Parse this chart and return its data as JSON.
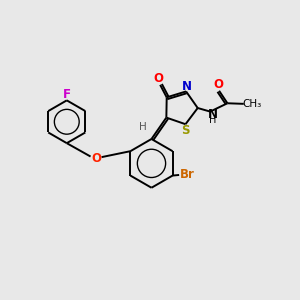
{
  "background_color": "#e8e8e8",
  "figsize": [
    3.0,
    3.0
  ],
  "dpi": 100,
  "bond_lw": 1.4,
  "font_size": 7.5,
  "colors": {
    "black": "#000000",
    "F": "#cc00cc",
    "O": "#ff0000",
    "O_ether": "#ff2200",
    "N": "#0000cc",
    "S": "#999900",
    "Br": "#cc6600",
    "H": "#555555"
  }
}
